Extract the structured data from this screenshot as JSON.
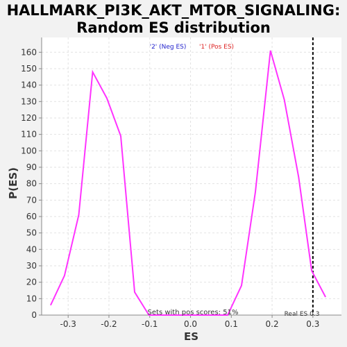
{
  "chart_data": {
    "type": "line",
    "title_line1": "HALLMARK_PI3K_AKT_MTOR_SIGNALING:",
    "title_line2": "Random ES distribution",
    "xlabel": "ES",
    "ylabel": "P(ES)",
    "xlim": [
      -0.365,
      0.37
    ],
    "ylim": [
      0,
      169
    ],
    "x_ticks": [
      -0.3,
      -0.2,
      -0.1,
      0.0,
      0.1,
      0.2,
      0.3
    ],
    "x_tick_labels": [
      "-0.3",
      "-0.2",
      "-0.1",
      "0.0",
      "0.1",
      "0.2",
      "0.3"
    ],
    "y_ticks": [
      0,
      10,
      20,
      30,
      40,
      50,
      60,
      70,
      80,
      90,
      100,
      110,
      120,
      130,
      140,
      150,
      160
    ],
    "grid": true,
    "legend": [
      {
        "label": "'2' (Neg ES)",
        "color": "#2222cc"
      },
      {
        "label": "'1' (Pos ES)",
        "color": "#dd2222"
      }
    ],
    "series": [
      {
        "color": "#ff33ff",
        "x": [
          -0.343,
          -0.309,
          -0.274,
          -0.24,
          -0.205,
          -0.171,
          -0.137,
          -0.102,
          -0.068,
          -0.034,
          0.0,
          0.033,
          0.067,
          0.091,
          0.125,
          0.159,
          0.196,
          0.23,
          0.265,
          0.297,
          0.331
        ],
        "y": [
          6,
          24,
          61,
          148,
          132,
          109,
          14,
          0,
          0,
          0,
          0,
          0,
          0,
          0,
          18,
          75,
          161,
          131,
          84,
          27,
          11
        ]
      }
    ],
    "vline": {
      "x": 0.3,
      "style": "dashed",
      "color": "#000000",
      "label": "Real ES 0.3"
    },
    "annotation": "Sets with pos scores: 51%"
  }
}
